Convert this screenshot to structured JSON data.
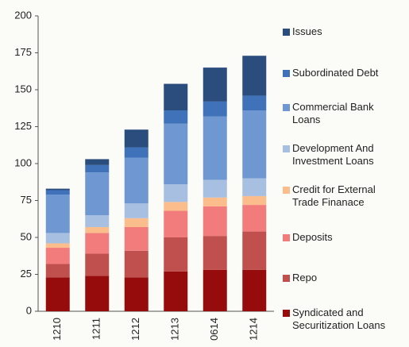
{
  "chart_data": {
    "type": "stacked_bar",
    "categories": [
      "1210",
      "1211",
      "1212",
      "1213",
      "0614",
      "1214"
    ],
    "series": [
      {
        "name": "Syndicated and Securitization Loans",
        "color": "#960c0c",
        "values": [
          23,
          24,
          23,
          27,
          28,
          28
        ]
      },
      {
        "name": "Repo",
        "color": "#c0504d",
        "values": [
          9,
          15,
          18,
          23,
          23,
          26
        ]
      },
      {
        "name": "Deposits",
        "color": "#f27c7c",
        "values": [
          11,
          14,
          16,
          18,
          20,
          18
        ]
      },
      {
        "name": "Credit for External Trade Finanace",
        "color": "#fbbd8c",
        "values": [
          3,
          4,
          6,
          6,
          6,
          6
        ]
      },
      {
        "name": "Development And Investment Loans",
        "color": "#a7bfe1",
        "values": [
          7,
          8,
          10,
          12,
          12,
          12
        ]
      },
      {
        "name": "Commercial Bank Loans",
        "color": "#6f97d1",
        "values": [
          26,
          29,
          31,
          41,
          43,
          46
        ]
      },
      {
        "name": "Subordinated Debt",
        "color": "#3f72b8",
        "values": [
          3,
          5,
          7,
          9,
          10,
          10
        ]
      },
      {
        "name": "Issues",
        "color": "#2b4d7e",
        "values": [
          1,
          4,
          12,
          18,
          23,
          27
        ]
      }
    ],
    "ylim": [
      0,
      200
    ],
    "yticks": [
      0,
      25,
      50,
      75,
      100,
      125,
      150,
      175,
      200
    ]
  }
}
